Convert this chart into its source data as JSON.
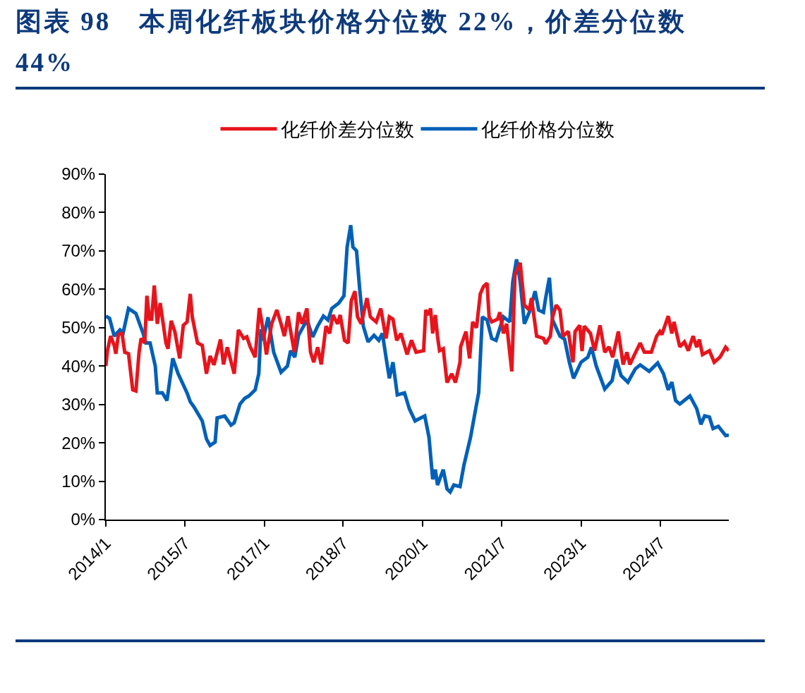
{
  "chart_data": {
    "type": "line",
    "title": "图表 98　本周化纤板块价格分位数 22%，价差分位数 44%",
    "xlim": [
      "2014-01-01",
      "2025-10-19"
    ],
    "xticks": [
      {
        "value": "2014-01-01",
        "label": "2014/1"
      },
      {
        "value": "2015-07-01",
        "label": "2015/7"
      },
      {
        "value": "2017-01-01",
        "label": "2017/1"
      },
      {
        "value": "2018-07-01",
        "label": "2018/7"
      },
      {
        "value": "2020-01-01",
        "label": "2020/1"
      },
      {
        "value": "2021-07-01",
        "label": "2021/7"
      },
      {
        "value": "2023-01-01",
        "label": "2023/1"
      },
      {
        "value": "2024-07-01",
        "label": "2024/7"
      }
    ],
    "ylim": [
      0,
      90
    ],
    "yticks": [
      {
        "value": 0,
        "label": "0%"
      },
      {
        "value": 10,
        "label": "10%"
      },
      {
        "value": 20,
        "label": "20%"
      },
      {
        "value": 30,
        "label": "30%"
      },
      {
        "value": 40,
        "label": "40%"
      },
      {
        "value": 50,
        "label": "50%"
      },
      {
        "value": 60,
        "label": "60%"
      },
      {
        "value": 70,
        "label": "70%"
      },
      {
        "value": 80,
        "label": "80%"
      },
      {
        "value": 90,
        "label": "90%"
      }
    ],
    "legend": "top",
    "marker": "none",
    "line_style": "solid",
    "series": [
      {
        "name": "化纤价差分位数",
        "color": "#e8141c",
        "x": [
          "2014-01-01",
          "2014-01-12",
          "2014-02-03",
          "2014-02-28",
          "2014-03-11",
          "2014-03-29",
          "2014-04-23",
          "2014-05-12",
          "2014-06-07",
          "2014-06-21",
          "2014-07-06",
          "2014-07-28",
          "2014-08-19",
          "2014-09-02",
          "2014-09-27",
          "2014-10-12",
          "2014-10-30",
          "2014-11-14",
          "2014-12-02",
          "2014-12-23",
          "2015-01-12",
          "2015-02-21",
          "2015-03-07",
          "2015-03-29",
          "2015-04-23",
          "2015-05-27",
          "2015-06-21",
          "2015-07-17",
          "2015-08-08",
          "2015-08-22",
          "2015-09-27",
          "2015-10-30",
          "2015-11-28",
          "2015-12-23",
          "2016-01-19",
          "2016-03-04",
          "2016-03-25",
          "2016-04-20",
          "2016-06-07",
          "2016-07-06",
          "2016-08-11",
          "2016-09-02",
          "2016-09-27",
          "2016-10-30",
          "2016-11-28",
          "2016-12-23",
          "2017-01-16",
          "2017-02-21",
          "2017-03-29",
          "2017-04-27",
          "2017-05-20",
          "2017-06-14",
          "2017-07-28",
          "2017-08-26",
          "2017-09-20",
          "2017-10-23",
          "2017-11-17",
          "2017-12-09",
          "2018-01-05",
          "2018-01-30",
          "2018-03-04",
          "2018-03-29",
          "2018-04-20",
          "2018-05-23",
          "2018-06-10",
          "2018-07-10",
          "2018-08-04",
          "2018-08-26",
          "2018-09-20",
          "2018-10-08",
          "2018-11-03",
          "2018-12-12",
          "2019-01-05",
          "2019-02-14",
          "2019-03-18",
          "2019-04-23",
          "2019-05-16",
          "2019-06-10",
          "2019-07-06",
          "2019-08-04",
          "2019-09-16",
          "2019-10-16",
          "2019-11-17",
          "2020-01-08",
          "2020-01-23",
          "2020-02-10",
          "2020-02-25",
          "2020-03-11",
          "2020-03-29",
          "2020-04-13",
          "2020-04-27",
          "2020-05-23",
          "2020-06-18",
          "2020-07-21",
          "2020-08-15",
          "2020-09-16",
          "2020-09-20",
          "2020-10-27",
          "2020-11-21",
          "2020-12-12",
          "2021-01-08",
          "2021-02-03",
          "2021-02-25",
          "2021-03-22",
          "2021-04-05",
          "2021-04-23",
          "2021-06-03",
          "2021-06-18",
          "2021-07-13",
          "2021-08-04",
          "2021-09-09",
          "2021-10-01",
          "2021-11-06",
          "2021-12-05",
          "2022-01-08",
          "2022-01-23",
          "2022-02-28",
          "2022-04-16",
          "2022-05-01",
          "2022-06-03",
          "2022-06-18",
          "2022-07-13",
          "2022-08-08",
          "2022-08-29",
          "2022-10-05",
          "2022-11-06",
          "2022-11-21",
          "2022-12-23",
          "2023-01-08",
          "2023-01-23",
          "2023-03-07",
          "2023-04-05",
          "2023-05-12",
          "2023-06-14",
          "2023-07-13",
          "2023-08-08",
          "2023-09-16",
          "2023-10-19",
          "2023-11-14",
          "2023-12-05",
          "2024-01-01",
          "2024-02-14",
          "2024-03-14",
          "2024-05-01",
          "2024-06-07",
          "2024-06-29",
          "2024-07-13",
          "2024-08-26",
          "2024-09-20",
          "2024-10-05",
          "2024-11-14",
          "2024-12-16",
          "2025-01-12",
          "2025-02-14",
          "2025-03-11",
          "2025-03-29",
          "2025-04-20",
          "2025-06-07",
          "2025-07-10",
          "2025-08-19",
          "2025-09-27",
          "2025-10-19"
        ],
        "values": [
          40,
          44,
          47.8,
          45.4,
          43.2,
          48.2,
          48.5,
          43.6,
          43.2,
          38.6,
          33.8,
          33.5,
          43.6,
          47.2,
          46,
          58.3,
          52.2,
          52.2,
          61,
          51,
          56.4,
          46,
          44.5,
          51.8,
          49,
          42,
          50.6,
          51.5,
          58.8,
          52.8,
          46,
          45.4,
          38,
          42.6,
          40.3,
          46.9,
          40.4,
          44.9,
          38,
          49.4,
          47.2,
          47.6,
          44.9,
          42.3,
          55.1,
          49.6,
          43,
          51,
          54.6,
          51,
          47.8,
          53,
          43.6,
          54,
          51,
          55,
          43.6,
          41,
          44.9,
          40.4,
          50.4,
          48.5,
          53.3,
          51,
          53.3,
          46.7,
          46,
          57,
          59.5,
          52.8,
          51,
          57.7,
          52.8,
          51.5,
          55,
          47.2,
          52.8,
          52.2,
          46.7,
          48.5,
          43,
          46.7,
          43.6,
          44,
          54.6,
          53.3,
          55,
          48.5,
          53.3,
          47.8,
          44,
          44.5,
          35.7,
          38,
          35.7,
          41,
          45,
          49,
          42,
          51.5,
          50,
          58.8,
          60.7,
          61.6,
          52.8,
          51.5,
          52.2,
          54,
          48.5,
          51,
          38.6,
          63.8,
          66.9,
          55.9,
          54.6,
          57.7,
          47.8,
          47.2,
          45.8,
          47.8,
          52.8,
          55.9,
          54.6,
          47.8,
          49,
          41,
          49,
          50.6,
          43.9,
          50.4,
          48.5,
          44,
          50.6,
          43.6,
          45,
          42.3,
          49,
          40.4,
          43.6,
          40.4,
          42.6,
          46,
          43.6,
          43.6,
          47.8,
          49,
          48.2,
          53,
          48.5,
          51.5,
          45,
          46.3,
          44,
          47.8,
          44.9,
          46.9,
          43,
          44,
          41,
          42.3,
          44.9,
          44
        ]
      },
      {
        "name": "化纤价格分位数",
        "color": "#0060b8",
        "x": [
          "2014-01-01",
          "2014-01-27",
          "2014-02-28",
          "2014-04-09",
          "2014-05-01",
          "2014-06-07",
          "2014-07-28",
          "2014-09-16",
          "2014-10-05",
          "2014-11-03",
          "2014-12-09",
          "2014-12-23",
          "2015-01-27",
          "2015-02-28",
          "2015-04-09",
          "2015-05-16",
          "2015-07-17",
          "2015-08-08",
          "2015-09-02",
          "2015-10-30",
          "2015-11-28",
          "2015-12-23",
          "2016-01-27",
          "2016-02-10",
          "2016-04-02",
          "2016-05-16",
          "2016-06-07",
          "2016-07-17",
          "2016-08-19",
          "2016-09-16",
          "2016-10-30",
          "2016-11-24",
          "2016-12-09",
          "2016-12-23",
          "2017-01-27",
          "2017-03-07",
          "2017-04-27",
          "2017-06-10",
          "2017-07-02",
          "2017-07-31",
          "2017-08-26",
          "2017-10-23",
          "2017-12-02",
          "2018-01-05",
          "2018-02-14",
          "2018-03-18",
          "2018-04-13",
          "2018-05-31",
          "2018-07-06",
          "2018-07-28",
          "2018-08-22",
          "2018-09-06",
          "2018-10-01",
          "2018-10-23",
          "2018-11-17",
          "2018-12-20",
          "2019-01-30",
          "2019-03-04",
          "2019-03-29",
          "2019-04-23",
          "2019-05-16",
          "2019-06-10",
          "2019-07-10",
          "2019-08-29",
          "2019-10-01",
          "2019-11-10",
          "2020-01-16",
          "2020-02-14",
          "2020-03-11",
          "2020-03-29",
          "2020-04-13",
          "2020-05-23",
          "2020-06-18",
          "2020-07-10",
          "2020-08-04",
          "2020-09-16",
          "2020-10-12",
          "2020-11-28",
          "2021-01-08",
          "2021-01-23",
          "2021-02-17",
          "2021-03-22",
          "2021-04-23",
          "2021-05-23",
          "2021-07-13",
          "2021-08-26",
          "2021-09-16",
          "2021-10-12",
          "2021-11-06",
          "2021-12-05",
          "2022-01-08",
          "2022-02-17",
          "2022-03-14",
          "2022-04-16",
          "2022-05-01",
          "2022-05-27",
          "2022-06-18",
          "2022-08-08",
          "2022-09-09",
          "2022-10-12",
          "2022-11-10",
          "2023-01-01",
          "2023-02-17",
          "2023-03-14",
          "2023-04-16",
          "2023-06-14",
          "2023-08-04",
          "2023-09-02",
          "2023-10-05",
          "2023-11-21",
          "2024-01-12",
          "2024-02-14",
          "2024-04-16",
          "2024-06-14",
          "2024-07-24",
          "2024-08-26",
          "2024-09-20",
          "2024-10-16",
          "2024-11-14",
          "2025-01-23",
          "2025-03-11",
          "2025-04-09",
          "2025-05-05",
          "2025-06-07",
          "2025-07-02",
          "2025-08-08",
          "2025-09-27",
          "2025-10-19"
        ],
        "values": [
          53,
          52.4,
          47.8,
          49.4,
          48.7,
          55,
          53.7,
          48.5,
          46,
          46,
          40,
          33,
          33,
          31,
          42,
          38,
          33,
          30.7,
          29.4,
          25.7,
          21,
          19.3,
          20.2,
          26.5,
          27,
          24.6,
          25.2,
          30.1,
          31.6,
          32.2,
          33.8,
          38,
          49.6,
          46.7,
          52.7,
          43.6,
          38.4,
          40,
          44,
          42.3,
          48,
          52,
          47.6,
          50.4,
          53,
          52,
          55,
          56.4,
          58.3,
          71,
          76.7,
          71,
          70,
          60,
          50.4,
          46.3,
          48,
          46.7,
          48.5,
          42.3,
          36.8,
          41,
          32.5,
          33,
          28.9,
          25.7,
          27,
          21.5,
          10.5,
          13,
          9,
          13,
          8,
          7.2,
          9,
          8.6,
          14,
          21.5,
          30,
          33,
          52.8,
          52,
          47.2,
          46.7,
          52.8,
          51.5,
          62,
          67.8,
          62,
          51,
          54,
          59.5,
          54.6,
          54,
          57.7,
          63,
          52,
          47.8,
          47,
          41,
          36.8,
          41,
          42.3,
          44.9,
          40,
          34,
          36.2,
          41.7,
          37.5,
          35.8,
          39.3,
          40.3,
          38.6,
          40.8,
          38,
          33.8,
          35.8,
          31,
          30.1,
          32.2,
          28.9,
          24.8,
          27,
          26.7,
          23.7,
          24.3,
          21.9,
          22
        ]
      }
    ]
  }
}
